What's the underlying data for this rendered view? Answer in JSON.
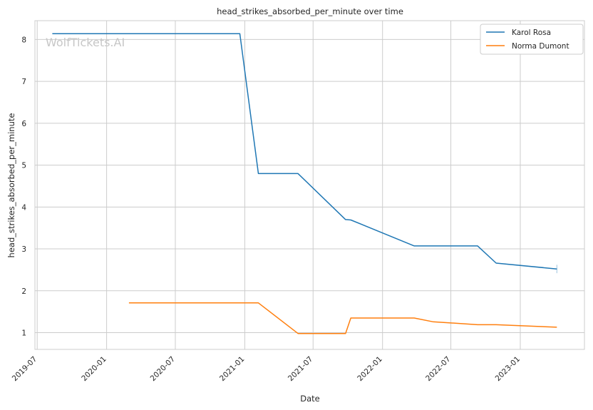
{
  "chart_data": {
    "type": "line",
    "title": "head_strikes_absorbed_per_minute over time",
    "xlabel": "Date",
    "ylabel": "head_strikes_absorbed_per_minute",
    "watermark": "WolfTickets.AI",
    "x_ticks": [
      "2019-07",
      "2020-01",
      "2020-07",
      "2021-01",
      "2021-07",
      "2022-01",
      "2022-07",
      "2023-01"
    ],
    "y_ticks": [
      1,
      2,
      3,
      4,
      5,
      6,
      7,
      8
    ],
    "xlim": [
      "2019-06-25",
      "2023-06-20"
    ],
    "ylim": [
      0.6,
      8.45
    ],
    "grid": true,
    "legend_position": "top-right",
    "series": [
      {
        "name": "Karol Rosa",
        "color": "#1f77b4",
        "points": [
          [
            "2019-08-10",
            8.14
          ],
          [
            "2020-12-19",
            8.14
          ],
          [
            "2021-02-06",
            4.8
          ],
          [
            "2021-05-22",
            4.8
          ],
          [
            "2021-09-25",
            3.7
          ],
          [
            "2021-10-09",
            3.69
          ],
          [
            "2022-03-26",
            3.07
          ],
          [
            "2022-09-10",
            3.07
          ],
          [
            "2022-10-29",
            2.66
          ],
          [
            "2023-04-08",
            2.52
          ]
        ],
        "error_bar": {
          "date": "2023-04-08",
          "low": 2.42,
          "high": 2.62
        }
      },
      {
        "name": "Norma Dumont",
        "color": "#ff7f0e",
        "points": [
          [
            "2020-02-29",
            1.71
          ],
          [
            "2021-02-06",
            1.71
          ],
          [
            "2021-05-22",
            0.98
          ],
          [
            "2021-09-25",
            0.98
          ],
          [
            "2021-10-09",
            1.35
          ],
          [
            "2022-03-26",
            1.35
          ],
          [
            "2022-05-14",
            1.26
          ],
          [
            "2022-09-10",
            1.19
          ],
          [
            "2022-10-29",
            1.19
          ],
          [
            "2023-04-08",
            1.13
          ]
        ]
      }
    ]
  }
}
